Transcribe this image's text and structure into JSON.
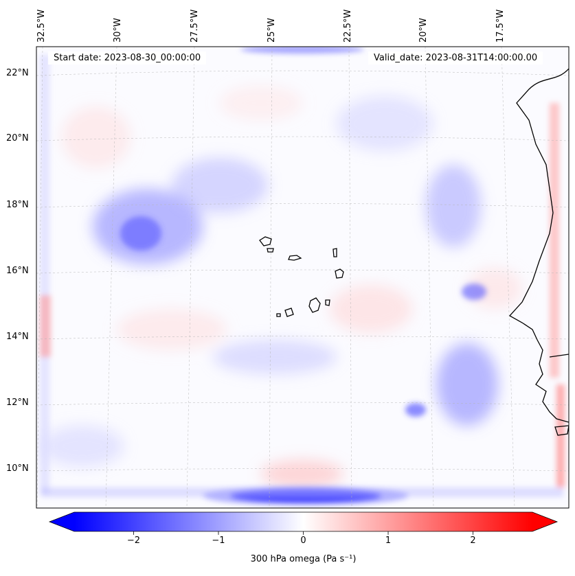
{
  "header": {
    "start_date": "Start date: 2023-08-30_00:00:00",
    "valid_date": "Valid_date: 2023-08-31T14:00:00.00"
  },
  "map": {
    "lon_labels": [
      "32.5°W",
      "30°W",
      "27.5°W",
      "25°W",
      "22.5°W",
      "20°W",
      "17.5°W"
    ],
    "lat_labels": [
      "22°N",
      "20°N",
      "18°N",
      "16°N",
      "14°N",
      "12°N",
      "10°N"
    ],
    "gridlines": true,
    "coastline_color": "#000000"
  },
  "colorbar": {
    "cmap": "bwr",
    "range": [
      -2.7,
      2.7
    ],
    "ticks": [
      "−2",
      "−1",
      "0",
      "1",
      "2"
    ],
    "tick_values": [
      -2,
      -1,
      0,
      1,
      2
    ],
    "label": "300 hPa omega (Pa s⁻¹)",
    "color_low": "#0000ff",
    "color_mid": "#ffffff",
    "color_high": "#ff0000"
  }
}
